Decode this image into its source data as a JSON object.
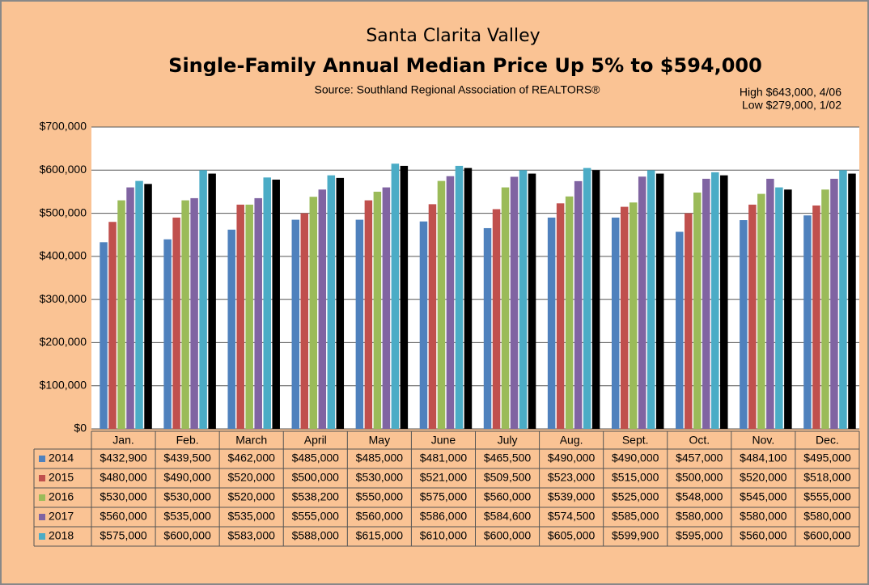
{
  "chart_data": {
    "type": "bar",
    "title": "Single-Family Annual Median Price Up 5% to $594,000",
    "supertitle": "Santa Clarita Valley",
    "subtitle": "Source: Southland Regional Association of REALTORS®",
    "annotations": [
      "High $643,000, 4/06",
      "Low $279,000, 1/02"
    ],
    "categories": [
      "Jan.",
      "Feb.",
      "March",
      "April",
      "May",
      "June",
      "July",
      "Aug.",
      "Sept.",
      "Oct.",
      "Nov.",
      "Dec."
    ],
    "ylim": [
      0,
      700000
    ],
    "yticks": [
      {
        "value": 0,
        "label": "$0"
      },
      {
        "value": 100000,
        "label": "$100,000"
      },
      {
        "value": 200000,
        "label": "$200,000"
      },
      {
        "value": 300000,
        "label": "$300,000"
      },
      {
        "value": 400000,
        "label": "$400,000"
      },
      {
        "value": 500000,
        "label": "$500,000"
      },
      {
        "value": 600000,
        "label": "$600,000"
      },
      {
        "value": 700000,
        "label": "$700,000"
      }
    ],
    "grid": true,
    "series": [
      {
        "name": "2014",
        "color": "#4f81bd",
        "values": [
          432900,
          439500,
          462000,
          485000,
          485000,
          481000,
          465500,
          490000,
          490000,
          457000,
          484100,
          495000
        ],
        "value_labels": [
          "$432,900",
          "$439,500",
          "$462,000",
          "$485,000",
          "$485,000",
          "$481,000",
          "$465,500",
          "$490,000",
          "$490,000",
          "$457,000",
          "$484,100",
          "$495,000"
        ]
      },
      {
        "name": "2015",
        "color": "#c0504d",
        "values": [
          480000,
          490000,
          520000,
          500000,
          530000,
          521000,
          509500,
          523000,
          515000,
          500000,
          520000,
          518000
        ],
        "value_labels": [
          "$480,000",
          "$490,000",
          "$520,000",
          "$500,000",
          "$530,000",
          "$521,000",
          "$509,500",
          "$523,000",
          "$515,000",
          "$500,000",
          "$520,000",
          "$518,000"
        ]
      },
      {
        "name": "2016",
        "color": "#9bbb59",
        "values": [
          530000,
          530000,
          520000,
          538200,
          550000,
          575000,
          560000,
          539000,
          525000,
          548000,
          545000,
          555000
        ],
        "value_labels": [
          "$530,000",
          "$530,000",
          "$520,000",
          "$538,200",
          "$550,000",
          "$575,000",
          "$560,000",
          "$539,000",
          "$525,000",
          "$548,000",
          "$545,000",
          "$555,000"
        ]
      },
      {
        "name": "2017",
        "color": "#8064a2",
        "values": [
          560000,
          535000,
          535000,
          555000,
          560000,
          586000,
          584600,
          574500,
          585000,
          580000,
          580000,
          580000
        ],
        "value_labels": [
          "$560,000",
          "$535,000",
          "$535,000",
          "$555,000",
          "$560,000",
          "$586,000",
          "$584,600",
          "$574,500",
          "$585,000",
          "$580,000",
          "$580,000",
          "$580,000"
        ]
      },
      {
        "name": "2018",
        "color": "#4bacc6",
        "values": [
          575000,
          600000,
          583000,
          588000,
          615000,
          610000,
          600000,
          605000,
          599900,
          595000,
          560000,
          600000
        ],
        "value_labels": [
          "$575,000",
          "$600,000",
          "$583,000",
          "$588,000",
          "$615,000",
          "$610,000",
          "$600,000",
          "$605,000",
          "$599,900",
          "$595,000",
          "$560,000",
          "$600,000"
        ]
      },
      {
        "color": "#000000",
        "values": [
          568000,
          592000,
          578000,
          582000,
          610000,
          605000,
          592000,
          600000,
          592000,
          588000,
          555000,
          592000
        ]
      }
    ]
  }
}
